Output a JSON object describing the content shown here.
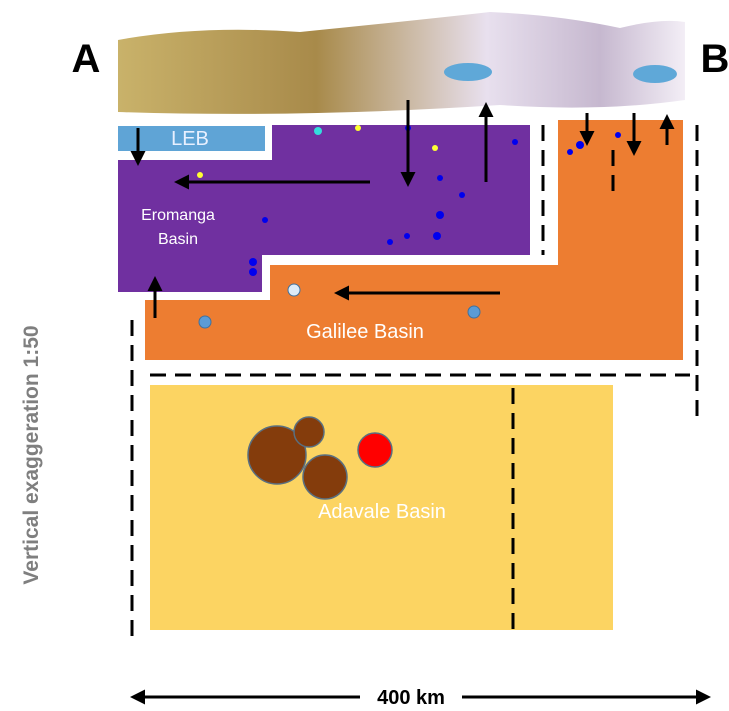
{
  "labels": {
    "a": "A",
    "b": "B",
    "leb": "LEB",
    "eromanga": [
      "Eromanga",
      "Basin"
    ],
    "galilee": "Galilee Basin",
    "adavale": "Adavale Basin",
    "vertical": "Vertical exaggeration 1:50",
    "scale": "400 km"
  }
}
